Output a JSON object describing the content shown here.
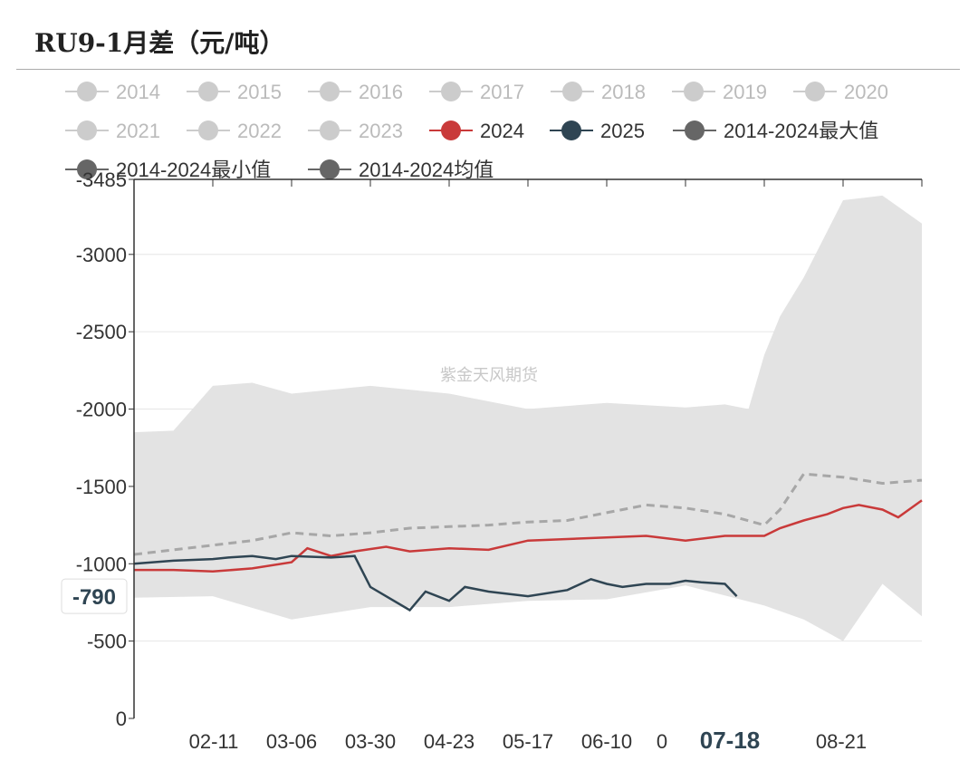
{
  "title": "RU9-1月差（元/吨）",
  "watermark": "紫金天风期货",
  "colors": {
    "inactive": "#cccccc",
    "inactive_text": "#bbbbbb",
    "y2024": "#c93a3a",
    "y2025": "#2f4553",
    "max": "#666666",
    "min": "#666666",
    "avg": "#666666",
    "band": "#e3e3e3",
    "avg_line": "#a7a7a7"
  },
  "chart_data": {
    "type": "line",
    "title": "RU9-1月差（元/吨）",
    "xlabel": "",
    "ylabel": "",
    "ylim": [
      -3485,
      0
    ],
    "y_ticks": [
      0,
      -500,
      -1000,
      -1500,
      -2000,
      -2500,
      -3000,
      -3485
    ],
    "y_tick_labels": [
      "0",
      "-500",
      "-1000",
      "-1500",
      "-2000",
      "-2500",
      "-3000",
      "-3485"
    ],
    "x_tick_labels": [
      "02-11",
      "03-06",
      "03-30",
      "04-23",
      "05-17",
      "06-10",
      "0",
      "07-18",
      "08-21"
    ],
    "highlight_x_label": "07-18",
    "highlight_y_label": "-790",
    "legend_position": "top",
    "legend": [
      {
        "name": "2014",
        "active": false
      },
      {
        "name": "2015",
        "active": false
      },
      {
        "name": "2016",
        "active": false
      },
      {
        "name": "2017",
        "active": false
      },
      {
        "name": "2018",
        "active": false
      },
      {
        "name": "2019",
        "active": false
      },
      {
        "name": "2020",
        "active": false
      },
      {
        "name": "2021",
        "active": false
      },
      {
        "name": "2022",
        "active": false
      },
      {
        "name": "2023",
        "active": false
      },
      {
        "name": "2024",
        "active": true,
        "color": "#c93a3a"
      },
      {
        "name": "2025",
        "active": true,
        "color": "#2f4553"
      },
      {
        "name": "2014-2024最大值",
        "active": true,
        "color": "#666666"
      },
      {
        "name": "2014-2024最小值",
        "active": true,
        "color": "#666666"
      },
      {
        "name": "2014-2024均值",
        "active": true,
        "color": "#666666"
      }
    ],
    "series": [
      {
        "name": "2014-2024最大值",
        "x": [
          0,
          10,
          20,
          30,
          40,
          50,
          60,
          70,
          80,
          85,
          90,
          95,
          100
        ],
        "y": [
          -780,
          -790,
          -640,
          -720,
          -720,
          -760,
          -770,
          -860,
          -730,
          -640,
          -500,
          -870,
          -660
        ]
      },
      {
        "name": "2014-2024最小值",
        "x": [
          0,
          5,
          10,
          15,
          20,
          30,
          40,
          50,
          60,
          70,
          75,
          78,
          80,
          82,
          85,
          90,
          95,
          100
        ],
        "y": [
          -1850,
          -1860,
          -2150,
          -2170,
          -2100,
          -2150,
          -2100,
          -2000,
          -2040,
          -2010,
          -2030,
          -2000,
          -2350,
          -2600,
          -2850,
          -3350,
          -3380,
          -3200
        ]
      },
      {
        "name": "2014-2024均值",
        "x": [
          0,
          5,
          10,
          15,
          20,
          25,
          30,
          35,
          40,
          45,
          50,
          55,
          60,
          65,
          70,
          75,
          80,
          82,
          85,
          90,
          95,
          100
        ],
        "y": [
          -1060,
          -1090,
          -1120,
          -1150,
          -1200,
          -1180,
          -1200,
          -1230,
          -1240,
          -1250,
          -1270,
          -1280,
          -1330,
          -1380,
          -1360,
          -1320,
          -1250,
          -1350,
          -1580,
          -1560,
          -1520,
          -1540
        ]
      },
      {
        "name": "2024",
        "x": [
          0,
          5,
          10,
          15,
          20,
          22,
          25,
          28,
          32,
          35,
          40,
          45,
          50,
          55,
          60,
          65,
          70,
          75,
          80,
          82,
          85,
          88,
          90,
          92,
          95,
          97,
          100
        ],
        "y": [
          -960,
          -960,
          -950,
          -970,
          -1010,
          -1100,
          -1050,
          -1080,
          -1110,
          -1080,
          -1100,
          -1090,
          -1150,
          -1160,
          -1170,
          -1180,
          -1150,
          -1180,
          -1180,
          -1230,
          -1280,
          -1320,
          -1360,
          -1380,
          -1350,
          -1300,
          -1410
        ]
      },
      {
        "name": "2025",
        "x": [
          0,
          5,
          10,
          12,
          15,
          18,
          20,
          25,
          28,
          30,
          35,
          37,
          40,
          42,
          45,
          50,
          55,
          58,
          60,
          62,
          65,
          68,
          70,
          72,
          75,
          76.5
        ],
        "y": [
          -1000,
          -1020,
          -1030,
          -1040,
          -1050,
          -1030,
          -1050,
          -1040,
          -1050,
          -850,
          -700,
          -820,
          -760,
          -850,
          -820,
          -790,
          -830,
          -900,
          -870,
          -850,
          -870,
          -870,
          -890,
          -880,
          -870,
          -790
        ]
      }
    ]
  }
}
